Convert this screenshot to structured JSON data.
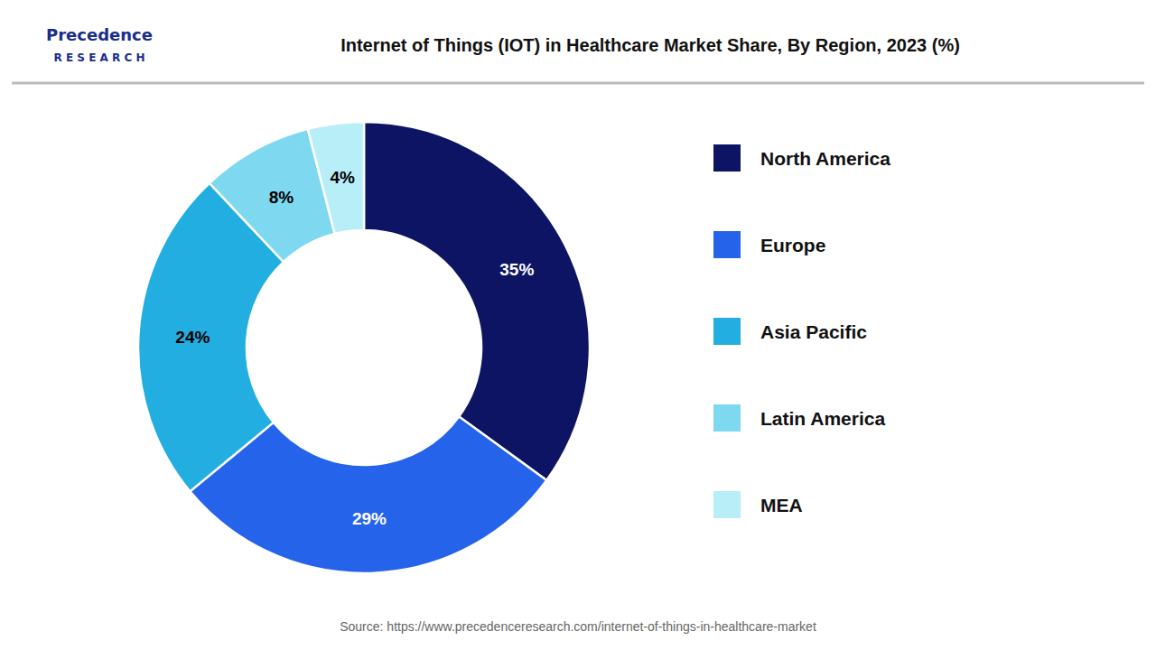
{
  "chart_data": {
    "type": "pie",
    "title": "Internet of Things (IOT) in Healthcare Market Share, By Region, 2023 (%)",
    "categories": [
      "North America",
      "Europe",
      "Asia Pacific",
      "Latin America",
      "MEA"
    ],
    "values": [
      35,
      29,
      24,
      8,
      4
    ],
    "value_labels": [
      "35%",
      "29%",
      "24%",
      "8%",
      "4%"
    ],
    "colors": [
      "#0d1464",
      "#2563eb",
      "#22aee0",
      "#7dd8f0",
      "#b8eef8"
    ],
    "data_labels": true,
    "legend": "right",
    "annotations": [
      "Precedence",
      "R E S E A R C H",
      "Source: https://www.precedenceresearch.com/internet-of-things-in-healthcare-market"
    ]
  }
}
